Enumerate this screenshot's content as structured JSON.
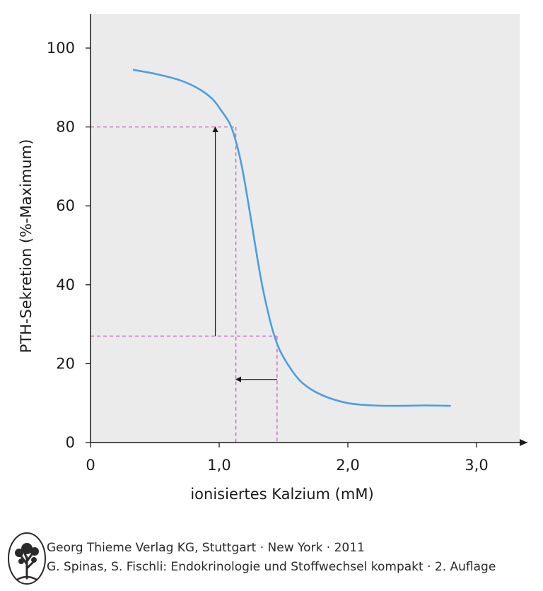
{
  "chart_data": {
    "type": "line",
    "title": "",
    "xlabel": "ionisiertes Kalzium (mM)",
    "ylabel": "PTH-Sekretion (%-Maximum)",
    "xlim": [
      0,
      3.35
    ],
    "ylim": [
      0,
      108
    ],
    "x_ticks": [
      {
        "value": 0,
        "label": "0"
      },
      {
        "value": 1.0,
        "label": "1,0"
      },
      {
        "value": 2.0,
        "label": "2,0"
      },
      {
        "value": 3.0,
        "label": "3,0"
      }
    ],
    "y_ticks": [
      {
        "value": 0,
        "label": "0"
      },
      {
        "value": 20,
        "label": "20"
      },
      {
        "value": 40,
        "label": "40"
      },
      {
        "value": 60,
        "label": "60"
      },
      {
        "value": 80,
        "label": "80"
      },
      {
        "value": 100,
        "label": "100"
      }
    ],
    "grid": false,
    "series": [
      {
        "color": "#4a9fe0",
        "x": [
          0.33,
          0.5,
          0.7,
          0.85,
          0.95,
          1.02,
          1.08,
          1.12,
          1.17,
          1.22,
          1.28,
          1.33,
          1.38,
          1.42,
          1.47,
          1.55,
          1.65,
          1.8,
          2.0,
          2.2,
          2.4,
          2.6,
          2.8
        ],
        "y": [
          94.5,
          93.5,
          91.8,
          89.5,
          87,
          84,
          81,
          77.5,
          71,
          62,
          50,
          40.5,
          33,
          28,
          23.5,
          19,
          15,
          12,
          10,
          9.4,
          9.3,
          9.4,
          9.3
        ]
      }
    ],
    "annotations": {
      "dashed_color": "#c65ac0",
      "reference_lines": [
        {
          "x": 1.13,
          "y": 80
        },
        {
          "x": 1.45,
          "y": 27
        }
      ],
      "arrows": [
        {
          "from": [
            0.97,
            27
          ],
          "to": [
            0.97,
            80
          ]
        },
        {
          "from": [
            1.45,
            16
          ],
          "to": [
            1.13,
            16
          ]
        }
      ]
    },
    "background": "#ebebeb",
    "axis_color": "#1a1a1a"
  },
  "footer": {
    "line1": "Georg Thieme Verlag KG, Stuttgart · New York · 2011",
    "line2": "G. Spinas, S. Fischli: Endokrinologie und Stoffwechsel kompakt · 2. Auflage"
  }
}
